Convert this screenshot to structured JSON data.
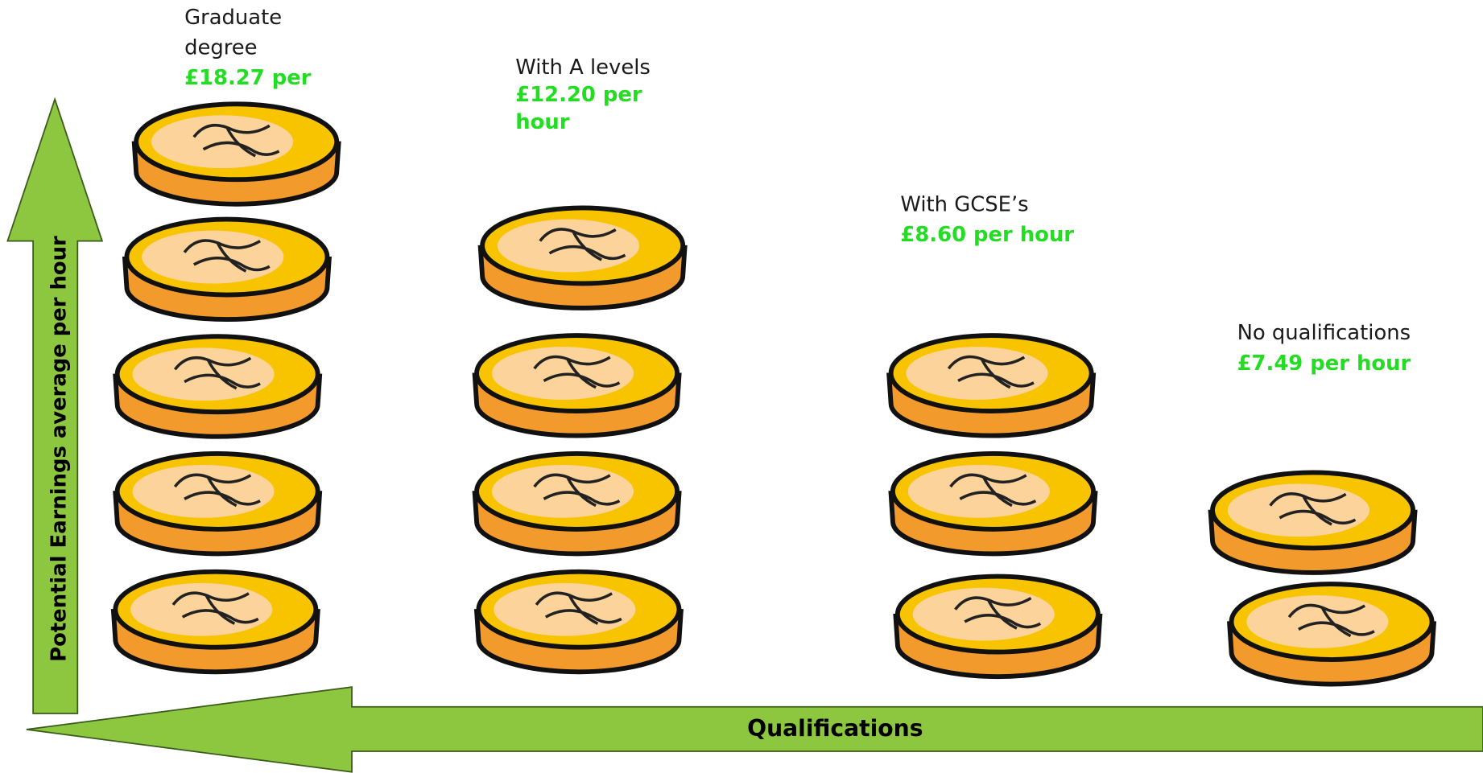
{
  "y_axis_label": "Potential Earnings average per hour",
  "x_axis_label": "Qualifications",
  "groups": [
    {
      "label_lines": [
        "Graduate",
        "degree"
      ],
      "earnings_lines": [
        "£18.27 per"
      ]
    },
    {
      "label_lines": [
        "With A levels"
      ],
      "earnings_lines": [
        "£12.20 per",
        "hour"
      ]
    },
    {
      "label_lines": [
        "With GCSE’s"
      ],
      "earnings_lines": [
        "£8.60 per hour"
      ]
    },
    {
      "label_lines": [
        "No qualifications"
      ],
      "earnings_lines": [
        "£7.49 per hour"
      ]
    }
  ]
}
